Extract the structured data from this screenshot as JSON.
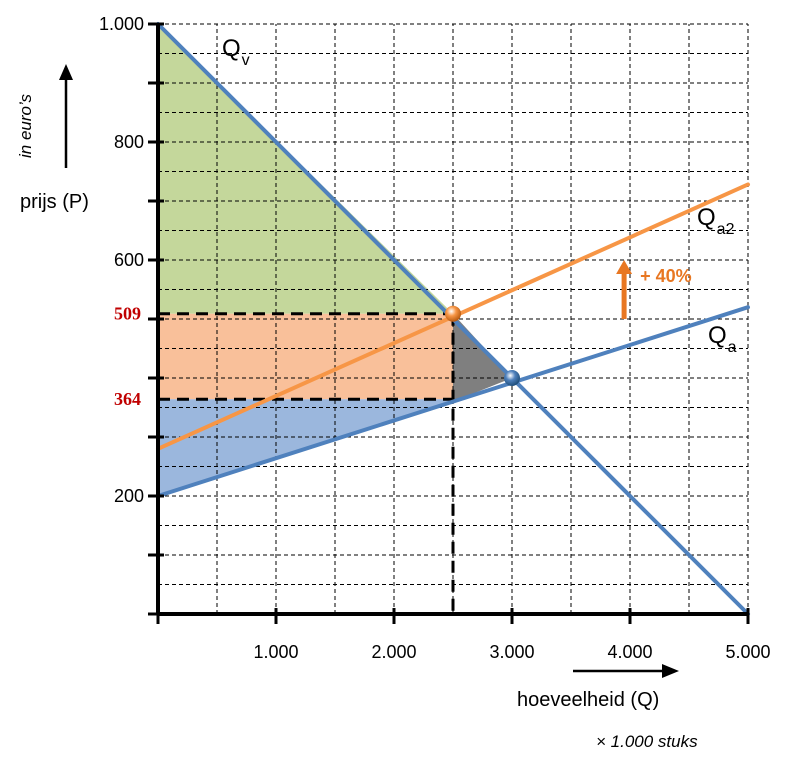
{
  "chart_data": {
    "type": "line",
    "xlim": [
      0,
      5000
    ],
    "ylim": [
      0,
      1000
    ],
    "x_ticks": [
      {
        "value": 1000,
        "label": "1.000"
      },
      {
        "value": 2000,
        "label": "2.000"
      },
      {
        "value": 3000,
        "label": "3.000"
      },
      {
        "value": 4000,
        "label": "4.000"
      },
      {
        "value": 5000,
        "label": "5.000"
      }
    ],
    "y_ticks": [
      {
        "value": 200,
        "label": "200"
      },
      {
        "value": 600,
        "label": "600"
      },
      {
        "value": 800,
        "label": "800"
      },
      {
        "value": 1000,
        "label": "1.000"
      }
    ],
    "y_highlight_ticks": [
      {
        "value": 509,
        "label": "509"
      },
      {
        "value": 364,
        "label": "364"
      }
    ],
    "xlabel": "hoeveelheid (Q)",
    "x_unit": "× 1.000 stuks",
    "ylabel": "prijs (P)",
    "y_unit": "in euro’s",
    "grid": true,
    "series": [
      {
        "name": "Q",
        "subscript": "v",
        "x": [
          0,
          5000
        ],
        "y": [
          1000,
          0
        ],
        "color": "#4f81bd"
      },
      {
        "name": "Q",
        "subscript": "a",
        "x": [
          0,
          5000
        ],
        "y": [
          200,
          520
        ],
        "color": "#4f81bd"
      },
      {
        "name": "Q",
        "subscript": "a2",
        "x": [
          0,
          5000
        ],
        "y": [
          280,
          728
        ],
        "color": "#f79646"
      }
    ],
    "equilibria": [
      {
        "x": 3000,
        "y": 400,
        "color": "#4f81bd"
      },
      {
        "x": 2500,
        "y": 509,
        "color": "#f79646"
      }
    ],
    "reference_lines": {
      "price_high": 509,
      "price_low": 364,
      "quantity": 2500
    },
    "shift_annotation": {
      "label": "+ 40%",
      "x": 3950,
      "y_from": 500,
      "y_to": 600,
      "color": "#e87722"
    },
    "areas": [
      {
        "id": "consumer-surplus",
        "color": "#c4d79b"
      },
      {
        "id": "producer-gain",
        "color": "#f9c09a"
      },
      {
        "id": "producer-surplus",
        "color": "#9bb7dd"
      },
      {
        "id": "deadweight-loss",
        "color": "#7f7f7f"
      }
    ],
    "highlight_color": "#c00000"
  }
}
